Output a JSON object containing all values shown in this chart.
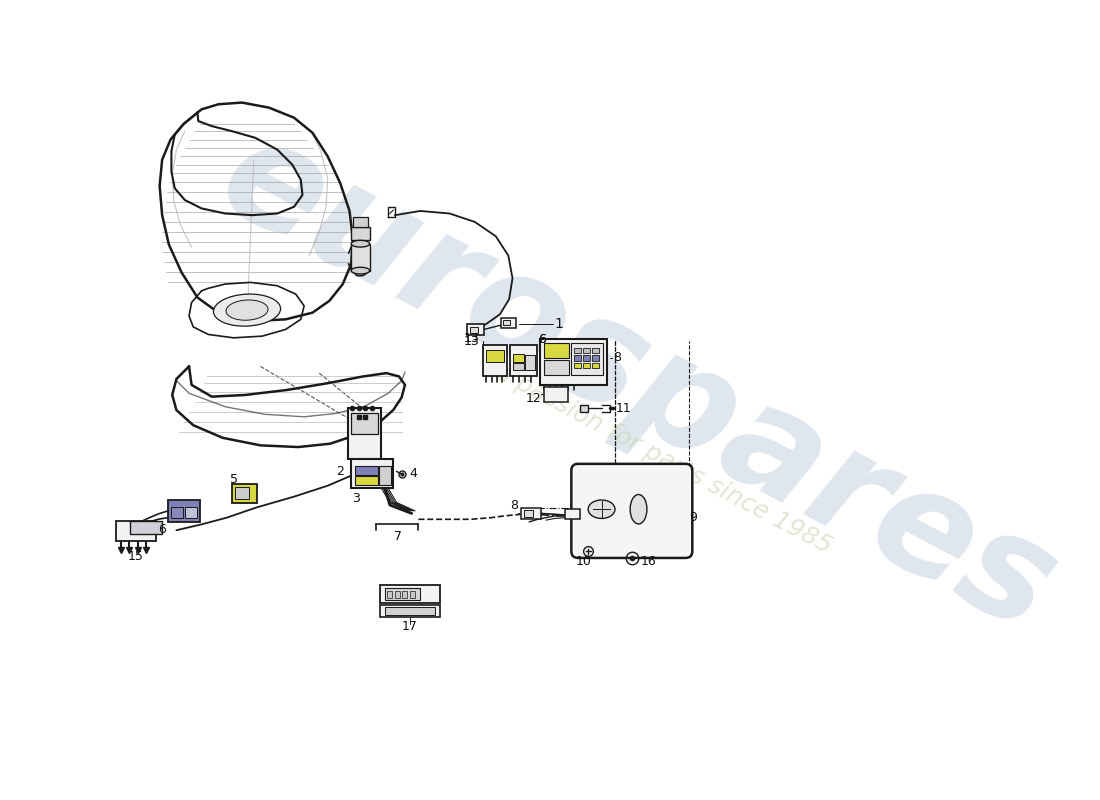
{
  "background_color": "#ffffff",
  "line_color": "#1a1a1a",
  "light_line": "#555555",
  "watermark_text1": "eurospares",
  "watermark_text2": "a passion for parts since 1985",
  "wm_color1": "#b8c8d8",
  "wm_color2": "#c8d4b0",
  "part_label_color": "#111111",
  "highlight_yellow": "#d8d840",
  "highlight_blue": "#8080b8",
  "comp_fill": "#f2f2f2",
  "gray_fill": "#e0e0e0",
  "seat_fill": "#f8f8f8",
  "cushion_fill": "#ececec"
}
